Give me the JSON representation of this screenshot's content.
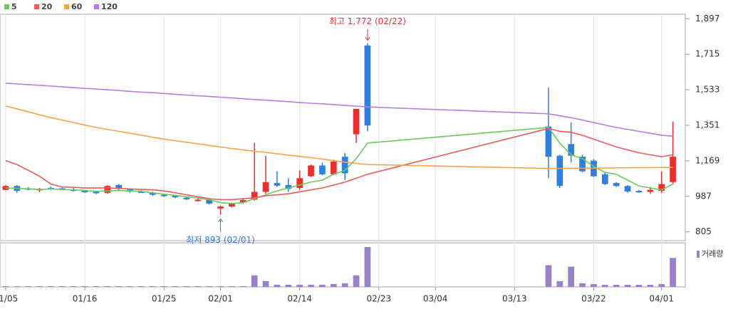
{
  "chart_data": {
    "type": "candlestick",
    "x": [
      0,
      1,
      2,
      3,
      4,
      5,
      6,
      7,
      8,
      9,
      10,
      11,
      12,
      13,
      14,
      15,
      16,
      17,
      18,
      19,
      20,
      21,
      22,
      23,
      24,
      25,
      26,
      27,
      28,
      29,
      30,
      31,
      32,
      48,
      49,
      50,
      51,
      52,
      53,
      54,
      55,
      56,
      57,
      58,
      59
    ],
    "open": [
      1020,
      1040,
      1028,
      1018,
      1030,
      1028,
      1022,
      1015,
      1010,
      1005,
      1045,
      1022,
      1012,
      1005,
      995,
      990,
      980,
      965,
      968,
      925,
      935,
      955,
      970,
      1010,
      1055,
      1045,
      1030,
      1090,
      1145,
      1100,
      1190,
      1305,
      1760,
      1345,
      1195,
      1255,
      1190,
      1170,
      1100,
      1055,
      1040,
      1015,
      1010,
      1015,
      1060
    ],
    "high": [
      1045,
      1045,
      1035,
      1030,
      1038,
      1035,
      1030,
      1020,
      1015,
      1045,
      1050,
      1028,
      1018,
      1010,
      1000,
      995,
      985,
      975,
      972,
      940,
      955,
      975,
      1262,
      1195,
      1115,
      1080,
      1120,
      1150,
      1160,
      1175,
      1210,
      1435,
      1772,
      1545,
      1200,
      1365,
      1200,
      1178,
      1110,
      1060,
      1045,
      1020,
      1035,
      1115,
      1370
    ],
    "low": [
      1018,
      1005,
      1018,
      1008,
      1020,
      1020,
      1012,
      1005,
      998,
      1000,
      1020,
      1005,
      1005,
      990,
      985,
      978,
      968,
      960,
      945,
      893,
      930,
      950,
      965,
      1000,
      1035,
      1010,
      1020,
      1085,
      1095,
      1095,
      1070,
      1260,
      1320,
      1080,
      1030,
      1160,
      1110,
      1085,
      1045,
      1035,
      1005,
      1005,
      1000,
      1005,
      1050
    ],
    "close": [
      1040,
      1015,
      1022,
      1025,
      1025,
      1022,
      1015,
      1010,
      1005,
      1040,
      1025,
      1012,
      1008,
      995,
      988,
      982,
      972,
      970,
      950,
      935,
      950,
      968,
      1010,
      1060,
      1042,
      1025,
      1080,
      1145,
      1100,
      1165,
      1105,
      1435,
      1350,
      1190,
      1040,
      1195,
      1115,
      1090,
      1050,
      1040,
      1012,
      1010,
      1020,
      1050,
      1190
    ],
    "volume": [
      1,
      1,
      1,
      1,
      1,
      1,
      1,
      1,
      1,
      1,
      1,
      1,
      1,
      1,
      1,
      1,
      1,
      1,
      1,
      1,
      1,
      1,
      16,
      8,
      3,
      3,
      3,
      3,
      3,
      4,
      5,
      16,
      55,
      30,
      8,
      28,
      5,
      4,
      3,
      3,
      3,
      3,
      3,
      4,
      40
    ],
    "volume_label": "거래량",
    "series": [
      {
        "name": "5",
        "color": "#6cc85e",
        "values": [
          1030,
          1028,
          1025,
          1022,
          1025,
          1022,
          1020,
          1017,
          1013,
          1015,
          1017,
          1015,
          1012,
          1005,
          998,
          992,
          985,
          978,
          970,
          955,
          950,
          955,
          975,
          995,
          1015,
          1030,
          1045,
          1060,
          1070,
          1100,
          1120,
          1180,
          1260,
          1340,
          1260,
          1200,
          1180,
          1140,
          1110,
          1100,
          1070,
          1040,
          1030,
          1020,
          1050
        ]
      },
      {
        "name": "20",
        "color": "#f05a5a",
        "values": [
          1170,
          1150,
          1120,
          1090,
          1050,
          1035,
          1033,
          1030,
          1030,
          1030,
          1028,
          1025,
          1022,
          1020,
          1015,
          1005,
          995,
          985,
          975,
          970,
          970,
          975,
          980,
          990,
          995,
          1000,
          1010,
          1020,
          1030,
          1045,
          1060,
          1080,
          1100,
          1335,
          1320,
          1315,
          1300,
          1280,
          1260,
          1240,
          1225,
          1210,
          1200,
          1190,
          1200
        ]
      },
      {
        "name": "60",
        "color": "#f7a34a",
        "values": [
          1450,
          1435,
          1420,
          1405,
          1390,
          1378,
          1365,
          1352,
          1340,
          1330,
          1320,
          1310,
          1300,
          1290,
          1280,
          1272,
          1264,
          1256,
          1248,
          1240,
          1232,
          1225,
          1218,
          1212,
          1205,
          1198,
          1192,
          1185,
          1178,
          1170,
          1162,
          1156,
          1150,
          1130,
          1130,
          1131,
          1131,
          1132,
          1132,
          1133,
          1133,
          1134,
          1134,
          1135,
          1135
        ]
      },
      {
        "name": "120",
        "color": "#b37fe0",
        "values": [
          1567,
          1563,
          1559,
          1556,
          1552,
          1548,
          1544,
          1540,
          1537,
          1533,
          1529,
          1525,
          1521,
          1518,
          1514,
          1510,
          1506,
          1502,
          1499,
          1495,
          1491,
          1487,
          1483,
          1480,
          1476,
          1472,
          1468,
          1464,
          1461,
          1457,
          1453,
          1449,
          1445,
          1410,
          1400,
          1390,
          1378,
          1365,
          1352,
          1340,
          1330,
          1320,
          1310,
          1300,
          1295
        ]
      }
    ],
    "up_color": "#e8312f",
    "down_color": "#2f7fe0",
    "volume_color": "#9b82c8",
    "annotations": [
      {
        "label": "최고 1,772 (02/22)",
        "x": 32,
        "y": 1772,
        "color": "#e8312f",
        "side": "top"
      },
      {
        "label": "최저 893 (02/01)",
        "x": 19,
        "y": 893,
        "color": "#2f7fe0",
        "side": "bottom"
      }
    ],
    "xlim": [
      -0.5,
      60.1
    ],
    "xticks": [
      {
        "value": 0,
        "label": "01/05"
      },
      {
        "value": 7,
        "label": "01/16"
      },
      {
        "value": 14,
        "label": "01/25"
      },
      {
        "value": 19,
        "label": "02/01"
      },
      {
        "value": 26,
        "label": "02/14"
      },
      {
        "value": 33,
        "label": "02/23"
      },
      {
        "value": 38,
        "label": "03/04"
      },
      {
        "value": 45,
        "label": "03/13"
      },
      {
        "value": 52,
        "label": "03/22"
      },
      {
        "value": 58,
        "label": "04/01"
      }
    ],
    "ylim": [
      760,
      1920
    ],
    "yticks": [
      {
        "value": 805,
        "label": "805"
      },
      {
        "value": 987,
        "label": "987"
      },
      {
        "value": 1169,
        "label": "1,169"
      },
      {
        "value": 1351,
        "label": "1,351"
      },
      {
        "value": 1533,
        "label": "1,533"
      },
      {
        "value": 1715,
        "label": "1,715"
      },
      {
        "value": 1897,
        "label": "1,897"
      }
    ]
  }
}
